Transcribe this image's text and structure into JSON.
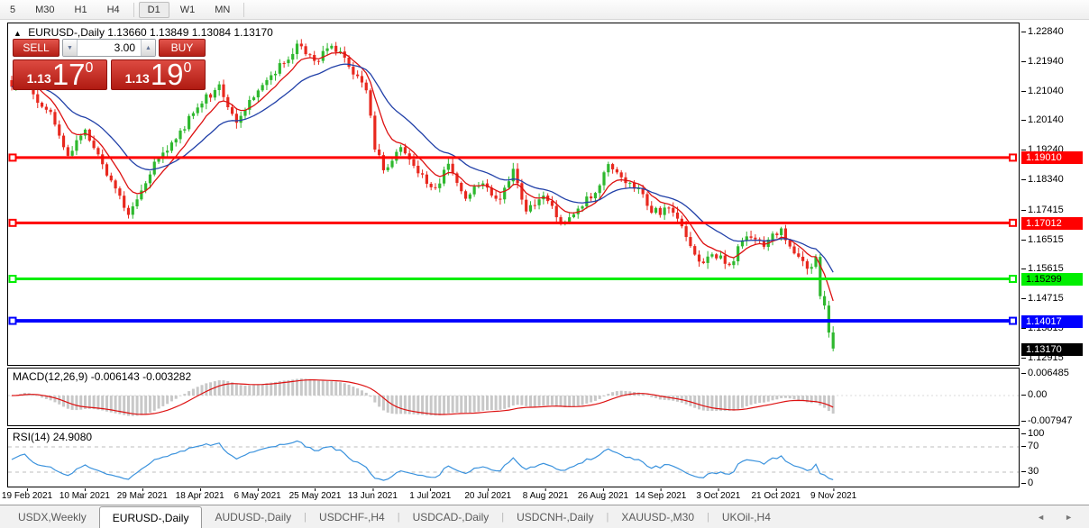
{
  "toolbar": {
    "timeframes": [
      {
        "label": "5",
        "active": false
      },
      {
        "label": "M30",
        "active": false
      },
      {
        "label": "H1",
        "active": false
      },
      {
        "label": "H4",
        "active": false
      },
      {
        "label": "D1",
        "active": true
      },
      {
        "label": "W1",
        "active": false
      },
      {
        "label": "MN",
        "active": false
      }
    ]
  },
  "chart_header": {
    "collapse_marker": "▲",
    "title": "EURUSD-,Daily",
    "ohlc_text": "1.13660 1.13849 1.13084 1.13170"
  },
  "trade_panel": {
    "sell_label": "SELL",
    "buy_label": "BUY",
    "volume": "3.00",
    "spin_down": "▼",
    "spin_up": "▲",
    "sell_price": {
      "prefix": "1.13",
      "big": "17",
      "sup": "0"
    },
    "buy_price": {
      "prefix": "1.13",
      "big": "19",
      "sup": "0"
    }
  },
  "indicators": {
    "macd_label": "MACD(12,26,9)",
    "macd_values": "-0.006143 -0.003282",
    "rsi_label": "RSI(14)",
    "rsi_value": "24.9080"
  },
  "tabs": [
    {
      "label": "USDX,Weekly",
      "active": false
    },
    {
      "label": "EURUSD-,Daily",
      "active": true
    },
    {
      "label": "AUDUSD-,Daily",
      "active": false
    },
    {
      "label": "USDCHF-,H4",
      "active": false
    },
    {
      "label": "USDCAD-,Daily",
      "active": false
    },
    {
      "label": "USDCNH-,Daily",
      "active": false
    },
    {
      "label": "XAUUSD-,M30",
      "active": false
    },
    {
      "label": "UKOil-,H4",
      "active": false
    }
  ],
  "scrollbar": {
    "left_arrow": "◄",
    "right_arrow": "►"
  },
  "chart_data": {
    "type": "candlestick",
    "symbol": "EURUSD-",
    "timeframe": "Daily",
    "last_ohlc": {
      "open": 1.1366,
      "high": 1.13849,
      "low": 1.13084,
      "close": 1.1317
    },
    "n_candles": 191,
    "close_anchors": [
      [
        0,
        1.2119
      ],
      [
        3,
        1.2172
      ],
      [
        6,
        1.2068
      ],
      [
        9,
        1.204
      ],
      [
        13,
        1.1905
      ],
      [
        17,
        1.1988
      ],
      [
        21,
        1.188
      ],
      [
        27,
        1.1725
      ],
      [
        29,
        1.1772
      ],
      [
        33,
        1.1888
      ],
      [
        38,
        1.1958
      ],
      [
        42,
        1.2038
      ],
      [
        48,
        1.2125
      ],
      [
        52,
        1.2008
      ],
      [
        55,
        1.2078
      ],
      [
        60,
        1.2152
      ],
      [
        64,
        1.22
      ],
      [
        66,
        1.225
      ],
      [
        70,
        1.2196
      ],
      [
        74,
        1.2243
      ],
      [
        78,
        1.218
      ],
      [
        82,
        1.2108
      ],
      [
        84,
        1.1925
      ],
      [
        86,
        1.1863
      ],
      [
        90,
        1.1932
      ],
      [
        94,
        1.1852
      ],
      [
        98,
        1.1806
      ],
      [
        101,
        1.1882
      ],
      [
        105,
        1.1776
      ],
      [
        109,
        1.1822
      ],
      [
        113,
        1.1772
      ],
      [
        116,
        1.1868
      ],
      [
        119,
        1.1736
      ],
      [
        123,
        1.1786
      ],
      [
        127,
        1.17
      ],
      [
        131,
        1.1746
      ],
      [
        135,
        1.1794
      ],
      [
        138,
        1.1882
      ],
      [
        141,
        1.1842
      ],
      [
        145,
        1.1808
      ],
      [
        148,
        1.1732
      ],
      [
        152,
        1.1746
      ],
      [
        155,
        1.169
      ],
      [
        159,
        1.1582
      ],
      [
        162,
        1.1606
      ],
      [
        166,
        1.1572
      ],
      [
        170,
        1.166
      ],
      [
        174,
        1.1628
      ],
      [
        178,
        1.1684
      ],
      [
        181,
        1.1608
      ],
      [
        184,
        1.1562
      ],
      [
        186,
        1.1596
      ],
      [
        187,
        1.1478
      ],
      [
        188,
        1.1448
      ],
      [
        189,
        1.1366
      ],
      [
        190,
        1.1317
      ]
    ],
    "price_axis_ticks": [
      {
        "label": "1.22840",
        "price": 1.2284
      },
      {
        "label": "1.21940",
        "price": 1.2194
      },
      {
        "label": "1.21040",
        "price": 1.2104
      },
      {
        "label": "1.20140",
        "price": 1.2014
      },
      {
        "label": "1.19240",
        "price": 1.1924
      },
      {
        "label": "1.18340",
        "price": 1.1834
      },
      {
        "label": "1.17415",
        "price": 1.17415
      },
      {
        "label": "1.16515",
        "price": 1.16515
      },
      {
        "label": "1.15615",
        "price": 1.15615
      },
      {
        "label": "1.14715",
        "price": 1.14715
      },
      {
        "label": "1.13815",
        "price": 1.13815
      },
      {
        "label": "1.12915",
        "price": 1.12915
      }
    ],
    "levels": [
      {
        "price": 1.1901,
        "label": "1.19010",
        "color": "#ff0000",
        "text_color": "#ffffff",
        "width": 3
      },
      {
        "price": 1.17012,
        "label": "1.17012",
        "color": "#ff0000",
        "text_color": "#ffffff",
        "width": 3
      },
      {
        "price": 1.15299,
        "label": "1.15299",
        "color": "#00ee00",
        "text_color": "#000000",
        "width": 3
      },
      {
        "price": 1.14017,
        "label": "1.14017",
        "color": "#0000ff",
        "text_color": "#ffffff",
        "width": 4
      }
    ],
    "current_price": {
      "label": "1.13170",
      "price": 1.1317,
      "bg": "#000000",
      "text_color": "#ffffff"
    },
    "macd": {
      "params": [
        12,
        26,
        9
      ],
      "value": -0.006143,
      "signal": -0.003282,
      "axis_ticks": [
        {
          "label": "0.006485",
          "value": 0.006485
        },
        {
          "label": "0.00",
          "value": 0
        },
        {
          "label": "-0.007947",
          "value": -0.007947
        }
      ]
    },
    "rsi": {
      "period": 14,
      "value": 24.908,
      "axis_ticks": [
        {
          "label": "100",
          "value": 100
        },
        {
          "label": "70",
          "value": 70
        },
        {
          "label": "30",
          "value": 30
        },
        {
          "label": "0",
          "value": 0
        }
      ],
      "guide_levels": [
        70,
        30
      ]
    },
    "date_labels": [
      "19 Feb 2021",
      "10 Mar 2021",
      "29 Mar 2021",
      "18 Apr 2021",
      "6 May 2021",
      "25 May 2021",
      "13 Jun 2021",
      "1 Jul 2021",
      "20 Jul 2021",
      "8 Aug 2021",
      "26 Aug 2021",
      "14 Sep 2021",
      "3 Oct 2021",
      "21 Oct 2021",
      "9 Nov 2021"
    ],
    "colors": {
      "bull": "#2eb82e",
      "bear": "#e8281e",
      "ma_fast": "#dd1111",
      "ma_slow": "#2140a8",
      "macd_hist": "#c8c8c8",
      "macd_signal": "#dd1111",
      "rsi_line": "#3a92dd"
    }
  }
}
